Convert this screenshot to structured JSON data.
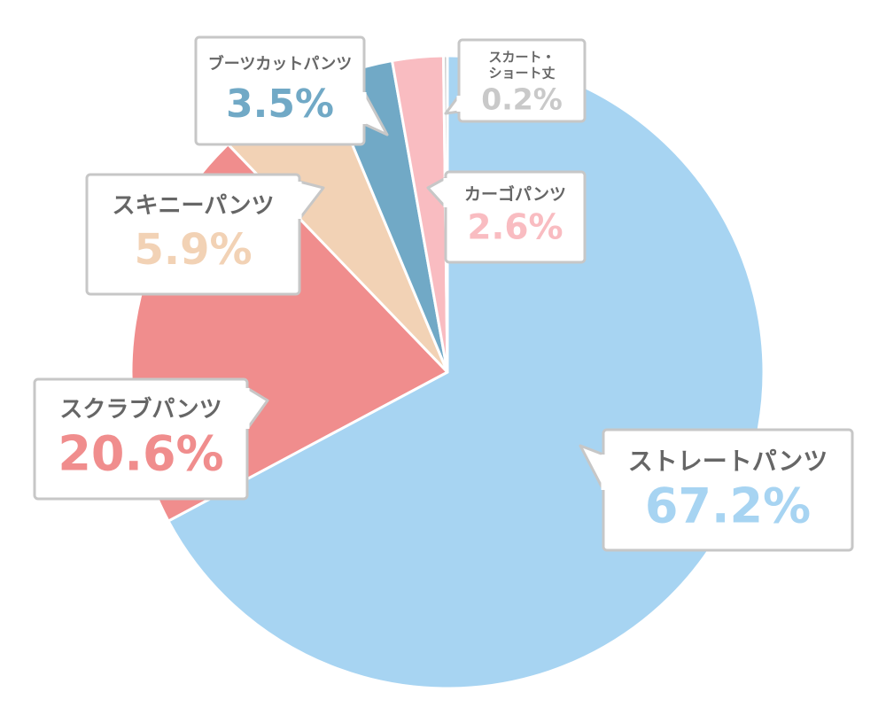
{
  "chart_data": {
    "type": "pie",
    "title": "",
    "categories": [
      "ストレートパンツ",
      "スクラブパンツ",
      "スキニーパンツ",
      "ブーツカットパンツ",
      "カーゴパンツ",
      "スカート・ショート丈"
    ],
    "values": [
      67.2,
      20.6,
      5.9,
      3.5,
      2.6,
      0.2
    ],
    "value_labels": [
      "67.2%",
      "20.6%",
      "5.9%",
      "3.5%",
      "2.6%",
      "0.2%"
    ],
    "colors": [
      "#a7d4f2",
      "#f08d8d",
      "#f2d2b5",
      "#71a9c6",
      "#f9bcc1",
      "#c9c9c9"
    ],
    "start_angle": 0,
    "direction": "clockwise",
    "legend": "callouts"
  },
  "labels": [
    {
      "name": "ストレートパンツ",
      "value": "67.2%",
      "name_lines": [
        "ストレートパンツ"
      ]
    },
    {
      "name": "スクラブパンツ",
      "value": "20.6%",
      "name_lines": [
        "スクラブパンツ"
      ]
    },
    {
      "name": "スキニーパンツ",
      "value": "5.9%",
      "name_lines": [
        "スキニーパンツ"
      ]
    },
    {
      "name": "ブーツカットパンツ",
      "value": "3.5%",
      "name_lines": [
        "ブーツカットパンツ"
      ]
    },
    {
      "name": "カーゴパンツ",
      "value": "2.6%",
      "name_lines": [
        "カーゴパンツ"
      ]
    },
    {
      "name": "スカート・ショート丈",
      "value": "0.2%",
      "name_lines": [
        "スカート・",
        "ショート丈"
      ]
    }
  ]
}
